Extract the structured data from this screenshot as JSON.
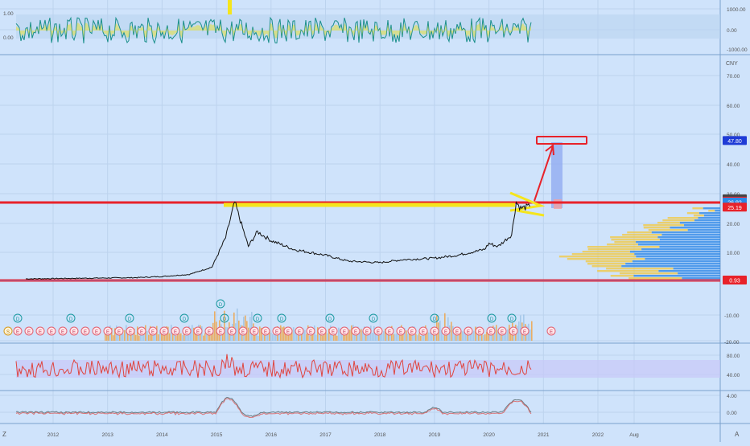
{
  "colors": {
    "background": "#cfe3fb",
    "grid": "#bcd3ee",
    "price_line": "#111111",
    "resistance": "#e8222a",
    "support": "#e8222a",
    "yellow": "#f5e51c",
    "rsi_line": "#e0443e",
    "osc_line": "#1a8f8a",
    "vp_blue": "#3b8ee8",
    "vp_yellow": "#f0c94a",
    "target_projection": "#8ea8f0"
  },
  "axis_labels": {
    "currency": "CNY",
    "top_pane_ticks": [
      "1000.00",
      "0.00",
      "-1000.00"
    ],
    "top_pane_left_ticks": [
      "1.00",
      "0.00"
    ],
    "price_ticks": [
      "70.00",
      "60.00",
      "50.00",
      "40.00",
      "30.00",
      "20.00",
      "10.00"
    ],
    "volume_ticks": [
      "-10.00",
      "-20.00"
    ],
    "rsi_ticks": [
      "80.00",
      "40.00"
    ],
    "osc_ticks": [
      "4.00",
      "0.00"
    ],
    "x_ticks": [
      "2012",
      "2013",
      "2014",
      "2015",
      "2016",
      "2017",
      "2018",
      "2019",
      "2020",
      "2021",
      "2022",
      "Aug"
    ],
    "corner_left": "Z",
    "corner_right": "A"
  },
  "price_badges": [
    {
      "label": "47.80",
      "color": "#1f3bd6"
    },
    {
      "label": "28.04",
      "color": "#444444"
    },
    {
      "label": "27.23",
      "color": "#e8222a"
    },
    {
      "label": "26.92",
      "color": "#2a8ae8"
    },
    {
      "label": "25.19",
      "color": "#e8222a"
    },
    {
      "label": "0.93",
      "color": "#e8222a"
    }
  ],
  "events": {
    "dividends": [
      "D",
      "D",
      "D",
      "D",
      "D",
      "D",
      "D",
      "D",
      "D",
      "D",
      "D",
      "D",
      "D"
    ],
    "earnings_label": "E",
    "split_label": "S"
  },
  "chart_data": {
    "type": "line",
    "symbol_currency": "CNY",
    "x_range": [
      "2011-07",
      "2022-12"
    ],
    "y_range": [
      0,
      75
    ],
    "price_series": {
      "dates": [
        "2011-07",
        "2012-01",
        "2012-07",
        "2013-01",
        "2013-07",
        "2014-01",
        "2014-07",
        "2014-12",
        "2015-03",
        "2015-05",
        "2015-06",
        "2015-08",
        "2015-10",
        "2016-01",
        "2016-06",
        "2017-01",
        "2017-06",
        "2018-01",
        "2018-06",
        "2019-01",
        "2019-06",
        "2019-12",
        "2020-01",
        "2020-03",
        "2020-06",
        "2020-07",
        "2020-08",
        "2020-10"
      ],
      "values": [
        1.0,
        1.1,
        1.2,
        1.3,
        1.4,
        1.8,
        2.5,
        5.0,
        15.0,
        27.0,
        22.0,
        12.0,
        17.0,
        14.0,
        11.0,
        9.0,
        7.0,
        6.5,
        7.5,
        8.0,
        9.0,
        11.0,
        13.0,
        12.0,
        16.0,
        27.0,
        25.0,
        25.5
      ]
    },
    "resistance_level": 28.04,
    "support_level": 0.93,
    "target_level": 47.8,
    "levels": [
      47.8,
      28.04,
      27.23,
      26.92,
      25.19,
      0.93
    ]
  }
}
